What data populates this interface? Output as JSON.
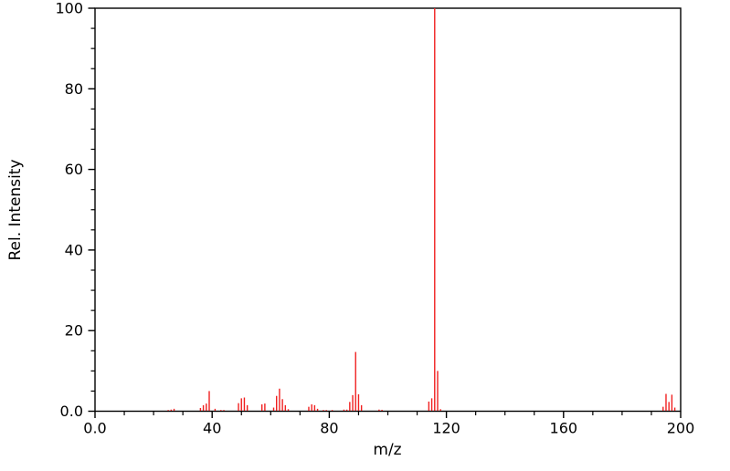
{
  "figure": {
    "background": "#ffffff",
    "axis_color": "#000000",
    "peak_color": "#f02020"
  },
  "chart_data": {
    "type": "bar",
    "subtype": "mass-spectrum-stick-plot",
    "title": "",
    "xlabel": "m/z",
    "ylabel": "Rel. Intensity",
    "xlim": [
      0,
      200
    ],
    "ylim": [
      0,
      100
    ],
    "grid": false,
    "legend": "none",
    "x_major_ticks": [
      0,
      40,
      80,
      120,
      160,
      200
    ],
    "x_major_ticklabels": [
      "0.0",
      "40",
      "80",
      "120",
      "160",
      "200"
    ],
    "x_minor_tick_interval": 10,
    "y_major_ticks": [
      0,
      20,
      40,
      60,
      80,
      100
    ],
    "y_major_ticklabels": [
      "0.0",
      "20",
      "40",
      "60",
      "80",
      "100"
    ],
    "y_minor_tick_interval": 5,
    "base_peak_mz": 116,
    "peaks": [
      [
        25,
        0.3
      ],
      [
        26,
        0.4
      ],
      [
        27,
        0.6
      ],
      [
        36,
        0.8
      ],
      [
        37,
        1.5
      ],
      [
        38,
        1.9
      ],
      [
        39,
        5.0
      ],
      [
        41,
        0.6
      ],
      [
        43,
        0.3
      ],
      [
        44,
        0.3
      ],
      [
        49,
        2.0
      ],
      [
        50,
        3.2
      ],
      [
        51,
        3.4
      ],
      [
        52,
        1.5
      ],
      [
        57,
        1.7
      ],
      [
        58,
        1.9
      ],
      [
        61,
        0.9
      ],
      [
        62,
        3.8
      ],
      [
        63,
        5.6
      ],
      [
        64,
        3.0
      ],
      [
        65,
        1.5
      ],
      [
        66,
        0.5
      ],
      [
        73,
        1.1
      ],
      [
        74,
        1.7
      ],
      [
        75,
        1.5
      ],
      [
        76,
        0.6
      ],
      [
        78,
        0.3
      ],
      [
        79,
        0.3
      ],
      [
        81,
        0.3
      ],
      [
        85,
        0.4
      ],
      [
        86,
        0.4
      ],
      [
        87,
        2.3
      ],
      [
        88,
        4.0
      ],
      [
        89,
        14.7
      ],
      [
        90,
        4.2
      ],
      [
        91,
        1.5
      ],
      [
        97,
        0.4
      ],
      [
        98,
        0.35
      ],
      [
        114,
        2.4
      ],
      [
        115,
        3.2
      ],
      [
        116,
        100
      ],
      [
        117,
        10
      ],
      [
        118,
        0.5
      ],
      [
        194,
        1.1
      ],
      [
        195,
        4.3
      ],
      [
        196,
        2.3
      ],
      [
        197,
        4.1
      ],
      [
        198,
        0.9
      ]
    ]
  }
}
